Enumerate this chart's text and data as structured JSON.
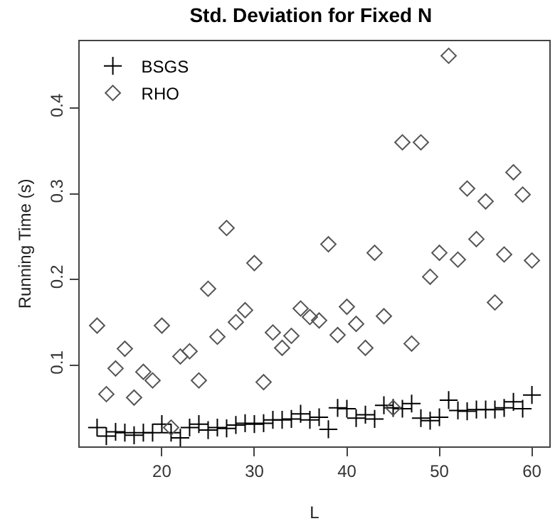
{
  "chart_data": {
    "type": "scatter",
    "title": "Std. Deviation for Fixed N",
    "xlabel": "L",
    "ylabel": "Running Time (s)",
    "x": [
      13,
      14,
      15,
      16,
      17,
      18,
      19,
      20,
      21,
      22,
      23,
      24,
      25,
      26,
      27,
      28,
      29,
      30,
      31,
      32,
      33,
      34,
      35,
      36,
      37,
      38,
      39,
      40,
      41,
      42,
      43,
      44,
      45,
      46,
      47,
      48,
      49,
      50,
      51,
      52,
      53,
      54,
      55,
      56,
      57,
      58,
      59,
      60
    ],
    "series": [
      {
        "name": "BSGS",
        "color": "#000000",
        "marker": "cross",
        "values": [
          0.027,
          0.017,
          0.022,
          0.021,
          0.018,
          0.021,
          0.021,
          0.031,
          0.021,
          0.015,
          0.027,
          0.031,
          0.024,
          0.027,
          0.026,
          0.03,
          0.032,
          0.031,
          0.032,
          0.036,
          0.036,
          0.037,
          0.043,
          0.036,
          0.039,
          0.025,
          0.05,
          0.049,
          0.038,
          0.042,
          0.037,
          0.053,
          0.05,
          0.049,
          0.055,
          0.038,
          0.035,
          0.039,
          0.059,
          0.047,
          0.046,
          0.048,
          0.048,
          0.048,
          0.05,
          0.057,
          0.049,
          0.065
        ]
      },
      {
        "name": "RHO",
        "color": "#555555",
        "marker": "diamond",
        "values": [
          0.146,
          0.066,
          0.096,
          0.119,
          0.062,
          0.092,
          0.082,
          0.146,
          0.027,
          0.11,
          0.116,
          0.082,
          0.189,
          0.133,
          0.26,
          0.15,
          0.164,
          0.219,
          0.08,
          0.138,
          0.12,
          0.134,
          0.166,
          0.156,
          0.152,
          0.241,
          0.135,
          0.168,
          0.148,
          0.12,
          0.231,
          0.157,
          0.05,
          0.36,
          0.125,
          0.36,
          0.203,
          0.231,
          0.461,
          0.223,
          0.306,
          0.247,
          0.291,
          0.173,
          0.229,
          0.325,
          0.299,
          0.222
        ]
      }
    ],
    "xlim": [
      11.12,
      61.88
    ],
    "xticks": [
      20,
      30,
      40,
      50,
      60
    ],
    "ylim": [
      0.005,
      0.478
    ],
    "yticks": [
      0.1,
      0.2,
      0.3,
      0.4
    ],
    "grid": false,
    "legend": "top left"
  }
}
